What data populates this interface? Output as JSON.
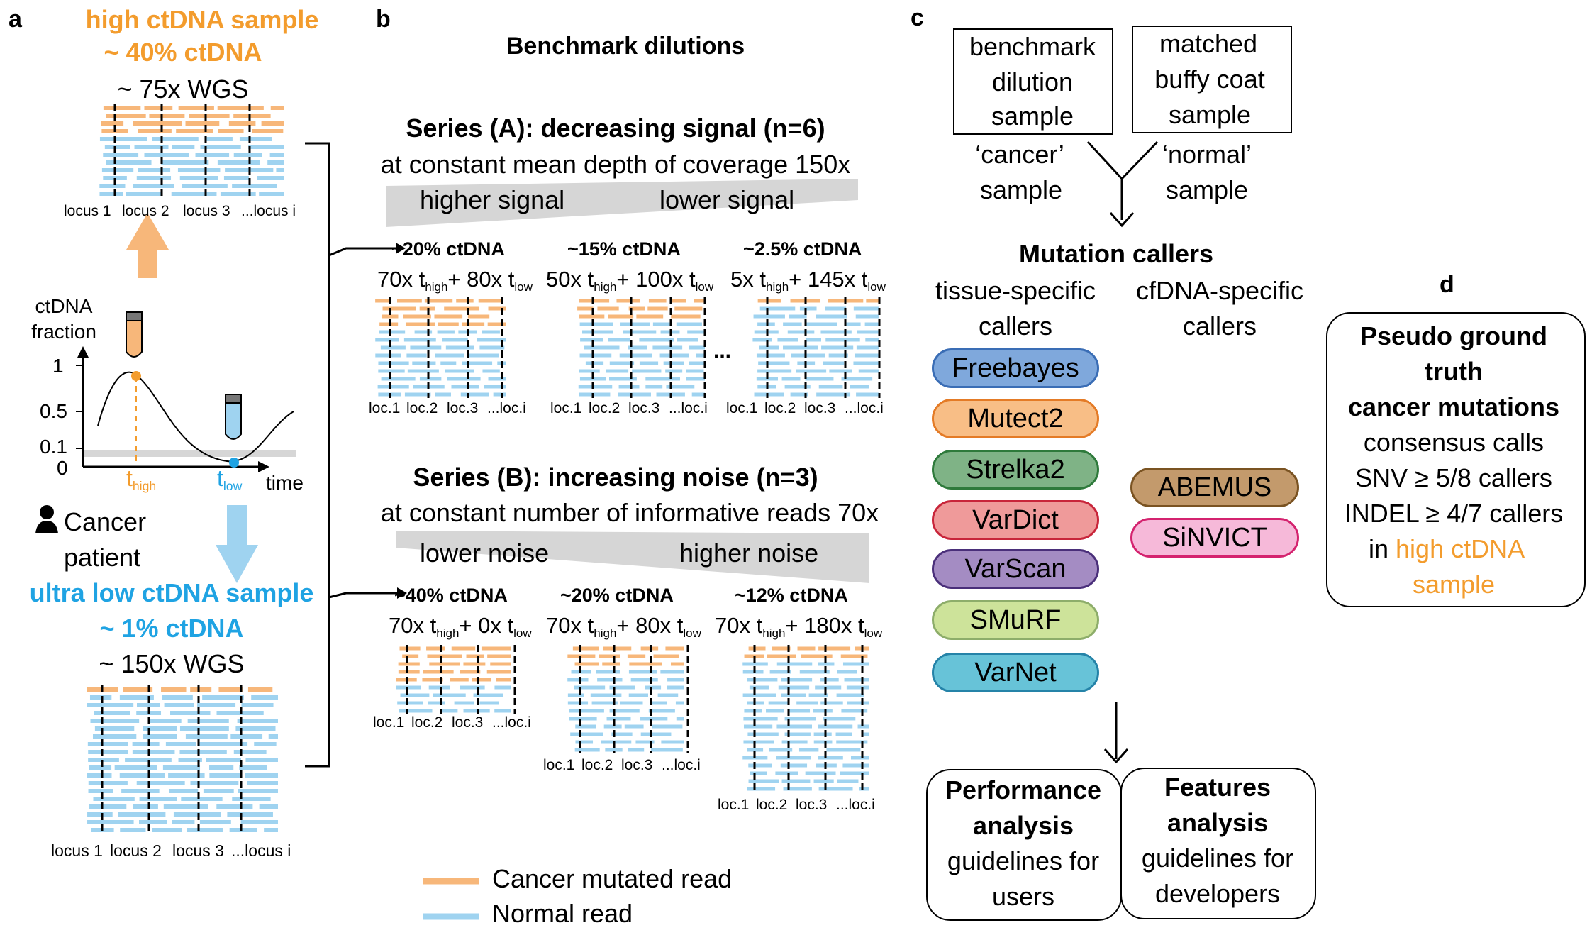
{
  "colors": {
    "cancer_read": "#f7b77a",
    "normal_read": "#9fd3f0",
    "orange": "#f39c2d",
    "blue": "#1fa3e3",
    "ramp": "#d6d6d6"
  },
  "panel_a": {
    "letter": "a",
    "high_title": "high ctDNA sample",
    "high_fraction": "~ 40% ctDNA",
    "high_wgs": "~ 75x WGS",
    "loci_high": [
      "locus 1",
      "locus 2",
      "locus 3",
      "...locus i"
    ],
    "plot_ylabel": [
      "ctDNA",
      "fraction"
    ],
    "yticks": [
      "1",
      "0.5",
      "0.1",
      "0"
    ],
    "t_high": "t",
    "t_high_sub": "high",
    "t_low": "t",
    "t_low_sub": "low",
    "time_label": "time",
    "patient": [
      "Cancer",
      "patient"
    ],
    "low_title": "ultra low ctDNA sample",
    "low_fraction": "~ 1% ctDNA",
    "low_wgs": "~ 150x WGS",
    "loci_low": [
      "locus 1",
      "locus 2",
      "locus 3",
      "...locus i"
    ]
  },
  "panel_b": {
    "letter": "b",
    "title": "Benchmark dilutions",
    "series_a": {
      "title": "Series (A): decreasing signal (n=6)",
      "subtitle": "at constant mean depth of coverage 150x",
      "ramp_left": "higher signal",
      "ramp_right": "lower signal",
      "samples": [
        {
          "fraction": "~20% ctDNA",
          "h": "70x t",
          "h_sub": "high",
          "l": "+ 80x t",
          "l_sub": "low"
        },
        {
          "fraction": "~15% ctDNA",
          "h": "50x t",
          "h_sub": "high",
          "l": "+ 100x t",
          "l_sub": "low"
        },
        {
          "fraction": "~2.5% ctDNA",
          "h": "5x t",
          "h_sub": "high",
          "l": "+ 145x t",
          "l_sub": "low"
        }
      ],
      "ellipsis": "..."
    },
    "series_b": {
      "title": "Series (B): increasing noise (n=3)",
      "subtitle": "at constant number of informative reads 70x",
      "ramp_left": "lower noise",
      "ramp_right": "higher noise",
      "samples": [
        {
          "fraction": "~40% ctDNA",
          "h": "70x t",
          "h_sub": "high",
          "l": "+ 0x t",
          "l_sub": "low"
        },
        {
          "fraction": "~20% ctDNA",
          "h": "70x t",
          "h_sub": "high",
          "l": "+ 80x t",
          "l_sub": "low"
        },
        {
          "fraction": "~12% ctDNA",
          "h": "70x t",
          "h_sub": "high",
          "l": "+ 180x t",
          "l_sub": "low"
        }
      ]
    },
    "loci_small": [
      "loc.1",
      "loc.2",
      "loc.3",
      "...loc.i"
    ],
    "legend": {
      "cancer": "Cancer mutated read",
      "normal": "Normal read"
    }
  },
  "panel_c": {
    "letter": "c",
    "box_left": [
      "benchmark",
      "dilution",
      "sample"
    ],
    "box_right": [
      "matched",
      "buffy coat",
      "sample"
    ],
    "cancer_label": [
      "‘cancer’",
      "sample"
    ],
    "normal_label": [
      "‘normal’",
      "sample"
    ],
    "callers_title": "Mutation callers",
    "tissue_header": [
      "tissue-specific",
      "callers"
    ],
    "cfdna_header": [
      "cfDNA-specific",
      "callers"
    ],
    "tissue_callers": [
      {
        "name": "Freebayes",
        "fill": "#7fa8dc",
        "border": "#3a6db5"
      },
      {
        "name": "Mutect2",
        "fill": "#f8be86",
        "border": "#e47b26"
      },
      {
        "name": "Strelka2",
        "fill": "#7fb386",
        "border": "#2e7a3b"
      },
      {
        "name": "VarDict",
        "fill": "#ef9a9a",
        "border": "#c8253a"
      },
      {
        "name": "VarScan",
        "fill": "#a48cc3",
        "border": "#4a2f7a"
      },
      {
        "name": "SMuRF",
        "fill": "#cde39a",
        "border": "#8dad6a"
      },
      {
        "name": "VarNet",
        "fill": "#67c3d8",
        "border": "#2583a8"
      }
    ],
    "cfdna_callers": [
      {
        "name": "ABEMUS",
        "fill": "#c39a6c",
        "border": "#7a5322"
      },
      {
        "name": "SiNVICT",
        "fill": "#f6b9d9",
        "border": "#d4236f"
      }
    ],
    "perf": {
      "title": [
        "Performance",
        "analysis"
      ],
      "text": [
        "guidelines for",
        "users"
      ]
    },
    "feat": {
      "title": [
        "Features",
        "analysis"
      ],
      "text": [
        "guidelines for",
        "developers"
      ]
    }
  },
  "panel_d": {
    "letter": "d",
    "title": [
      "Pseudo ground",
      "truth",
      "cancer mutations"
    ],
    "lines": [
      "consensus calls",
      "SNV ≥ 5/8 callers",
      "INDEL ≥ 4/7 callers"
    ],
    "in_word": "in ",
    "highlight": [
      "high ctDNA",
      "sample"
    ]
  }
}
